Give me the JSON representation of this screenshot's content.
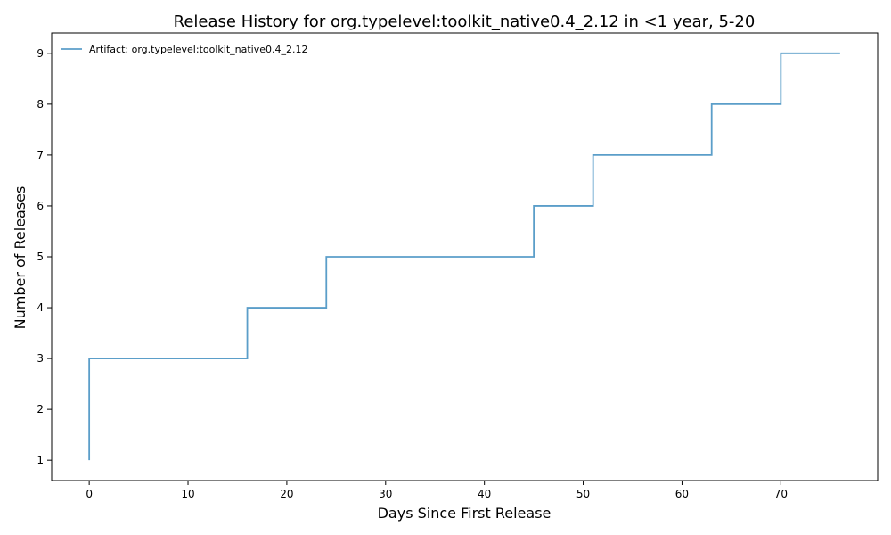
{
  "chart_data": {
    "type": "line",
    "title": "Release History for org.typelevel:toolkit_native0.4_2.12 in <1 year, 5-20",
    "xlabel": "Days Since First Release",
    "ylabel": "Number of Releases",
    "xlim": [
      -3.8,
      79.8
    ],
    "ylim": [
      0.6,
      9.4
    ],
    "xticks": [
      0,
      10,
      20,
      30,
      40,
      50,
      60,
      70
    ],
    "yticks": [
      1,
      2,
      3,
      4,
      5,
      6,
      7,
      8,
      9
    ],
    "grid": false,
    "legend_position": "top-left",
    "step": "post",
    "series": [
      {
        "name": "Artifact: org.typelevel:toolkit_native0.4_2.12",
        "color": "#5b9ec9",
        "x": [
          0,
          0,
          0,
          16,
          24,
          45,
          51,
          63,
          70,
          76
        ],
        "y": [
          1,
          2,
          3,
          4,
          5,
          6,
          7,
          8,
          9,
          9
        ]
      }
    ]
  }
}
